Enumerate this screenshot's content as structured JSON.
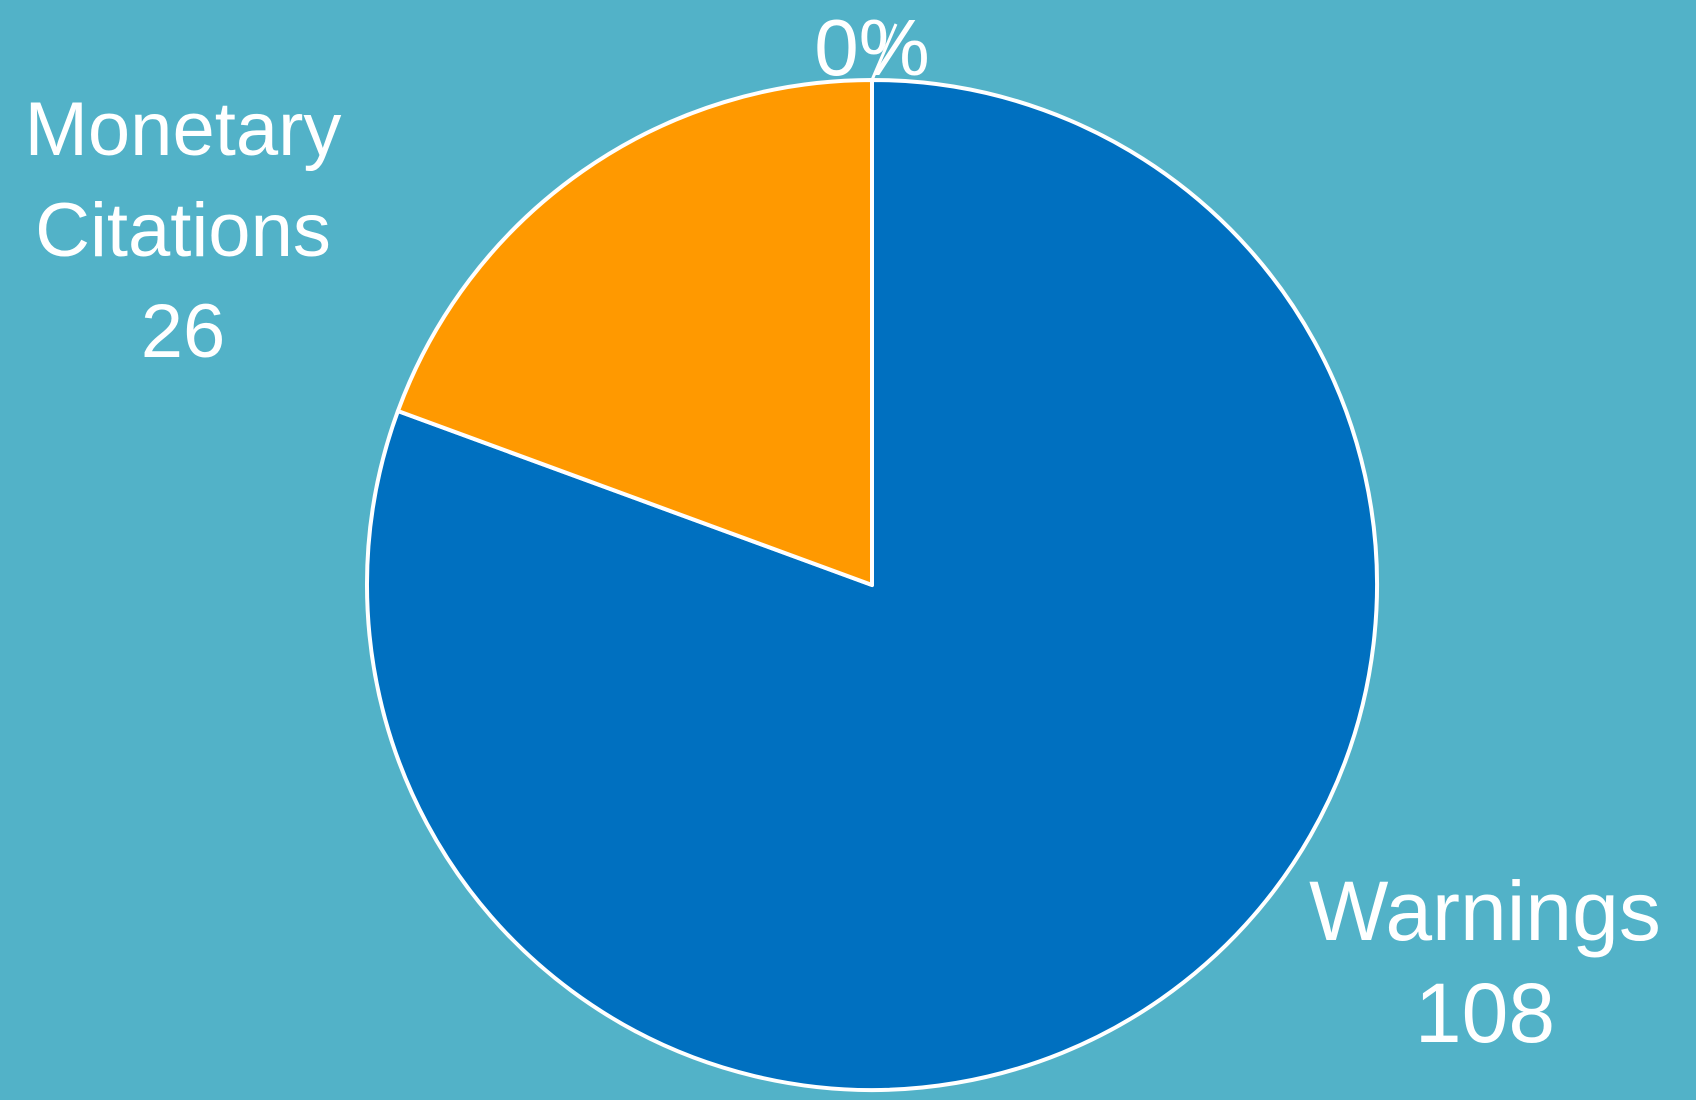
{
  "chart_data": {
    "type": "pie",
    "categories": [
      "Warnings",
      "Monetary Citations",
      ""
    ],
    "values": [
      108,
      26,
      0
    ],
    "data_labels": [
      {
        "lines": [
          "Warnings",
          "108"
        ]
      },
      {
        "lines": [
          "Monetary",
          "Citations",
          "26"
        ]
      },
      {
        "lines": [
          "0%"
        ]
      }
    ],
    "colors": [
      "#0070c0",
      "#ff9900",
      "#ffffff"
    ],
    "slice_border": "#ffffff",
    "background": "#52b2c8",
    "start_angle": "12 o'clock",
    "direction": "clockwise",
    "legend": "none"
  }
}
